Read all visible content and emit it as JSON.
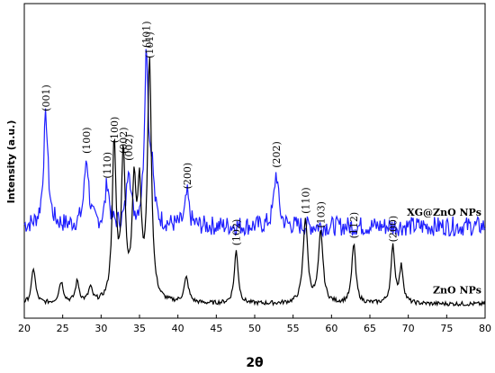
{
  "chart_data": {
    "type": "line",
    "xlabel": "2θ",
    "ylabel": "Intensity (a.u.)",
    "xlim": [
      20,
      80
    ],
    "xticks": [
      20,
      25,
      30,
      35,
      40,
      45,
      50,
      55,
      60,
      65,
      70,
      75,
      80
    ],
    "grid": false,
    "legend": "none",
    "series": [
      {
        "name": "XG@ZnO NPs",
        "color": "#1f1fff",
        "baseline": 2.2,
        "peaks": [
          {
            "x": 22.8,
            "h": 3.1,
            "w": 0.35,
            "label": "(001)"
          },
          {
            "x": 28.1,
            "h": 1.9,
            "w": 0.35,
            "label": "(100)"
          },
          {
            "x": 30.8,
            "h": 1.2,
            "w": 0.3,
            "label": "(110)"
          },
          {
            "x": 33.6,
            "h": 1.7,
            "w": 0.3,
            "label": "(002)"
          },
          {
            "x": 35.9,
            "h": 4.9,
            "w": 0.3,
            "label": "(101)"
          },
          {
            "x": 36.6,
            "h": 1.4,
            "w": 0.3
          },
          {
            "x": 41.2,
            "h": 0.9,
            "w": 0.3,
            "label": "(200)"
          },
          {
            "x": 52.8,
            "h": 1.5,
            "w": 0.35,
            "label": "(202)"
          }
        ]
      },
      {
        "name": "ZnO NPs",
        "color": "#000000",
        "baseline": 0.0,
        "peaks": [
          {
            "x": 21.2,
            "h": 1.0,
            "w": 0.3
          },
          {
            "x": 24.8,
            "h": 0.6,
            "w": 0.35
          },
          {
            "x": 26.9,
            "h": 0.6,
            "w": 0.3
          },
          {
            "x": 28.6,
            "h": 0.4,
            "w": 0.3
          },
          {
            "x": 31.7,
            "h": 4.4,
            "w": 0.3,
            "label": "(100)"
          },
          {
            "x": 32.9,
            "h": 4.1,
            "w": 0.3,
            "label": "(002)"
          },
          {
            "x": 34.3,
            "h": 3.1,
            "w": 0.3
          },
          {
            "x": 35.0,
            "h": 2.9,
            "w": 0.3
          },
          {
            "x": 36.3,
            "h": 6.8,
            "w": 0.3,
            "label": "(101)"
          },
          {
            "x": 41.1,
            "h": 0.7,
            "w": 0.35
          },
          {
            "x": 47.6,
            "h": 1.5,
            "w": 0.3,
            "label": "(102)"
          },
          {
            "x": 56.6,
            "h": 2.4,
            "w": 0.35,
            "label": "(110)"
          },
          {
            "x": 58.6,
            "h": 2.0,
            "w": 0.35,
            "label": "(103)"
          },
          {
            "x": 62.9,
            "h": 1.7,
            "w": 0.3,
            "label": "(112)"
          },
          {
            "x": 68.0,
            "h": 1.6,
            "w": 0.3,
            "label": "(200)"
          },
          {
            "x": 69.1,
            "h": 1.0,
            "w": 0.3
          }
        ]
      }
    ],
    "ylim": [
      -0.4,
      8.5
    ]
  }
}
